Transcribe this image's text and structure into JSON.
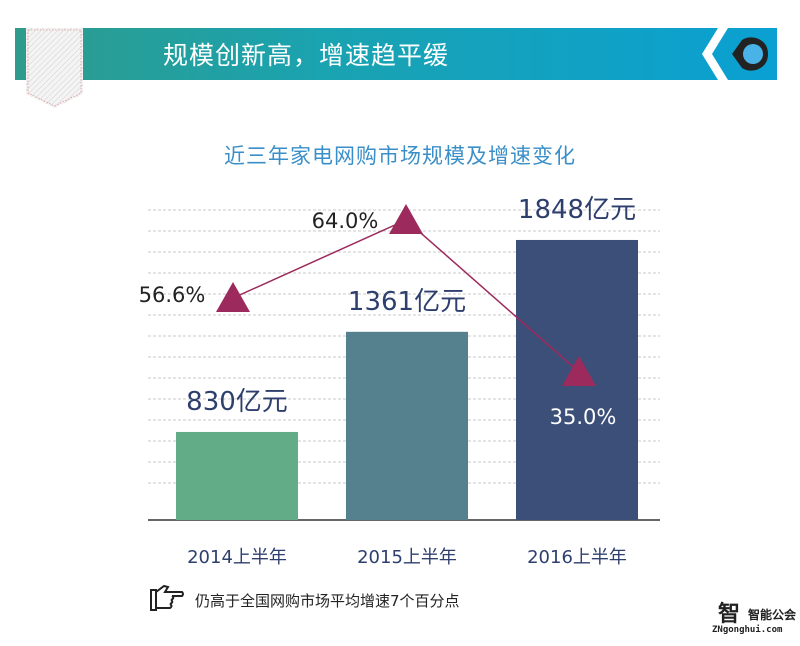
{
  "header": {
    "title": "规模创新高，增速趋平缓",
    "icon": "location-pin-icon"
  },
  "chart_data": {
    "type": "bar",
    "title": "近三年家电网购市场规模及增速变化",
    "categories": [
      "2014上半年",
      "2015上半年",
      "2016上半年"
    ],
    "series": [
      {
        "values": [
          830,
          1361,
          1848
        ],
        "labels": [
          "830亿元",
          "1361亿元",
          "1848亿元"
        ],
        "colors": [
          "#62ad88",
          "#55808e",
          "#3b4f79"
        ]
      },
      {
        "type": "line",
        "values": [
          56.6,
          64.0,
          35.0
        ],
        "labels": [
          "56.6%",
          "64.0%",
          "35.0%"
        ],
        "color": "#9c2a5c"
      }
    ],
    "grid": true
  },
  "footer": {
    "note": "仍高于全国网购市场平均增速7个百分点",
    "note_icon": "pointing-hand-icon",
    "logo_text": "智能公会",
    "logo_url": "ZNgonghui.com"
  }
}
